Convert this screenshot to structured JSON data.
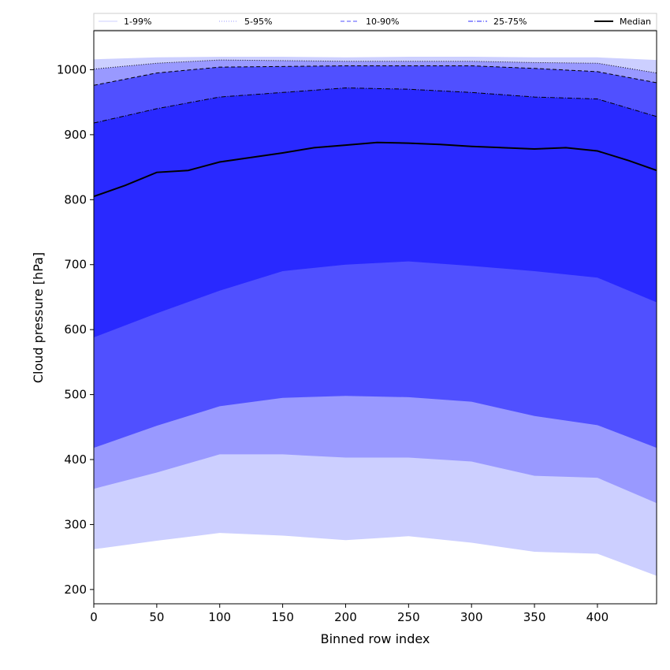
{
  "chart_data": {
    "type": "area",
    "xlabel": "Binned row index",
    "ylabel": "Cloud pressure [hPa]",
    "xlim": [
      0,
      447
    ],
    "ylim": [
      178,
      1060
    ],
    "x_ticks": [
      0,
      50,
      100,
      150,
      200,
      250,
      300,
      350,
      400
    ],
    "y_ticks": [
      200,
      300,
      400,
      500,
      600,
      700,
      800,
      900,
      1000
    ],
    "grid": false,
    "legend_position": "top, above plot, single row",
    "bands": [
      {
        "name": "1-99%",
        "color": "#cccfff",
        "line_style": "solid",
        "lower": {
          "x": [
            0,
            50,
            100,
            150,
            200,
            250,
            300,
            350,
            400,
            447
          ],
          "y": [
            262,
            275,
            287,
            283,
            276,
            282,
            272,
            258,
            255,
            221
          ]
        },
        "upper": {
          "x": [
            0,
            50,
            100,
            150,
            200,
            250,
            300,
            350,
            400,
            447
          ],
          "y": [
            1016,
            1019,
            1020,
            1020,
            1019,
            1020,
            1020,
            1019,
            1019,
            1015
          ]
        }
      },
      {
        "name": "5-95%",
        "color": "#9999ff",
        "line_style": "dotted",
        "lower": {
          "x": [
            0,
            50,
            100,
            150,
            200,
            250,
            300,
            350,
            400,
            447
          ],
          "y": [
            355,
            380,
            408,
            408,
            403,
            403,
            397,
            375,
            372,
            333
          ]
        },
        "upper": {
          "x": [
            0,
            50,
            100,
            150,
            200,
            250,
            300,
            350,
            400,
            447
          ],
          "y": [
            1001,
            1010,
            1015,
            1014,
            1013,
            1013,
            1013,
            1011,
            1010,
            995
          ]
        }
      },
      {
        "name": "10-90%",
        "color": "#5050ff",
        "line_style": "dashed",
        "lower": {
          "x": [
            0,
            50,
            100,
            150,
            200,
            250,
            300,
            350,
            400,
            447
          ],
          "y": [
            418,
            452,
            482,
            495,
            498,
            496,
            489,
            467,
            453,
            418
          ]
        },
        "upper": {
          "x": [
            0,
            50,
            100,
            150,
            200,
            250,
            300,
            350,
            400,
            447
          ],
          "y": [
            976,
            995,
            1004,
            1005,
            1006,
            1006,
            1006,
            1002,
            997,
            980
          ]
        }
      },
      {
        "name": "25-75%",
        "color": "#2929ff",
        "line_style": "dash-dot",
        "lower": {
          "x": [
            0,
            50,
            100,
            150,
            200,
            250,
            300,
            350,
            400,
            447
          ],
          "y": [
            588,
            625,
            660,
            690,
            700,
            705,
            698,
            690,
            680,
            642
          ]
        },
        "upper": {
          "x": [
            0,
            50,
            100,
            150,
            200,
            250,
            300,
            350,
            400,
            447
          ],
          "y": [
            918,
            940,
            958,
            965,
            972,
            970,
            965,
            958,
            955,
            928
          ]
        }
      }
    ],
    "series": [
      {
        "name": "Median",
        "color": "#000000",
        "x": [
          0,
          25,
          50,
          75,
          100,
          125,
          150,
          175,
          200,
          225,
          250,
          275,
          300,
          325,
          350,
          375,
          400,
          425,
          447
        ],
        "y": [
          805,
          822,
          842,
          845,
          858,
          865,
          872,
          880,
          884,
          888,
          887,
          885,
          882,
          880,
          878,
          880,
          875,
          860,
          845
        ]
      }
    ]
  }
}
